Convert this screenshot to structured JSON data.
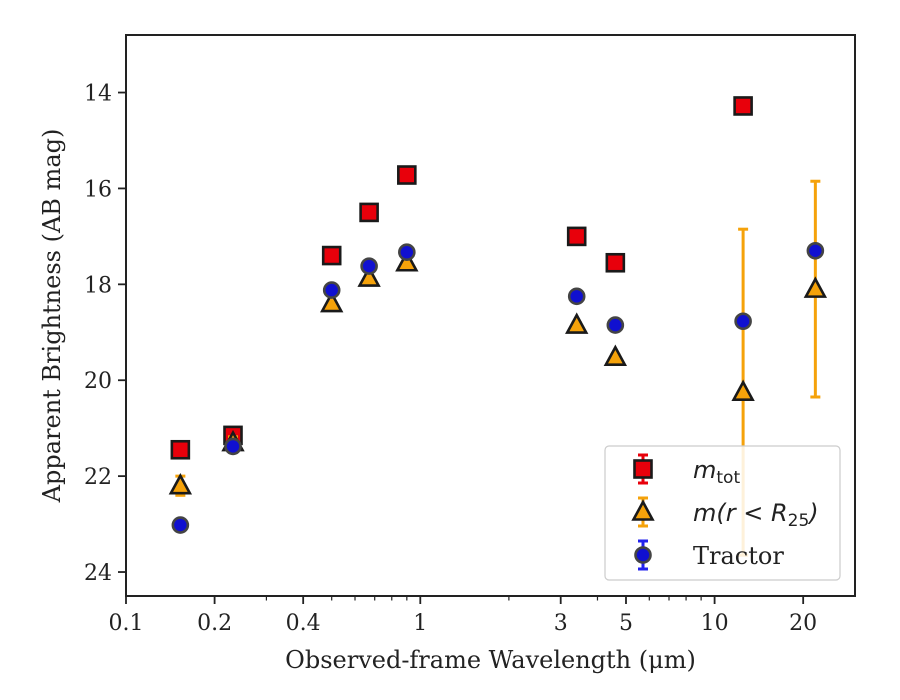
{
  "chart_data": {
    "type": "scatter",
    "xlabel": "Observed-frame Wavelength (μm)",
    "ylabel": "Apparent Brightness (AB mag)",
    "x_scale": "log",
    "xlim": [
      0.1,
      30
    ],
    "ylim": [
      24.5,
      12.8
    ],
    "y_inverted": true,
    "x_ticks": [
      {
        "value": 0.1,
        "label": "0.1"
      },
      {
        "value": 0.2,
        "label": "0.2"
      },
      {
        "value": 0.4,
        "label": "0.4"
      },
      {
        "value": 1,
        "label": "1"
      },
      {
        "value": 3,
        "label": "3"
      },
      {
        "value": 5,
        "label": "5"
      },
      {
        "value": 10,
        "label": "10"
      },
      {
        "value": 20,
        "label": "20"
      }
    ],
    "y_ticks": [
      {
        "value": 14,
        "label": "14"
      },
      {
        "value": 16,
        "label": "16"
      },
      {
        "value": 18,
        "label": "18"
      },
      {
        "value": 20,
        "label": "20"
      },
      {
        "value": 22,
        "label": "22"
      },
      {
        "value": 24,
        "label": "24"
      }
    ],
    "grid": false,
    "legend_position": "lower-right",
    "series": [
      {
        "key": "mtot",
        "legend_main": "m",
        "legend_sub": "tot",
        "marker": "square",
        "fill": "#e8000b",
        "errcolor": "#e8000b",
        "points": [
          {
            "x": 0.153,
            "y": 21.45,
            "err": 0.05
          },
          {
            "x": 0.231,
            "y": 21.15,
            "err": 0.1
          },
          {
            "x": 0.5,
            "y": 17.4,
            "err": 0.03
          },
          {
            "x": 0.67,
            "y": 16.5,
            "err": 0.03
          },
          {
            "x": 0.9,
            "y": 15.72,
            "err": 0.03
          },
          {
            "x": 3.4,
            "y": 17.0,
            "err": 0.05
          },
          {
            "x": 4.6,
            "y": 17.55,
            "err": 0.05
          },
          {
            "x": 12.5,
            "y": 14.28,
            "err": 0.05
          }
        ]
      },
      {
        "key": "mr25",
        "legend_main": "m(r < R",
        "legend_sub": "25",
        "legend_tail": ")",
        "marker": "triangle",
        "fill": "#f5a20a",
        "errcolor": "#f5a20a",
        "points": [
          {
            "x": 0.153,
            "y": 22.2,
            "err": 0.2
          },
          {
            "x": 0.231,
            "y": 21.3,
            "err": 0.12
          },
          {
            "x": 0.5,
            "y": 18.4,
            "err": 0.03
          },
          {
            "x": 0.67,
            "y": 17.87,
            "err": 0.03
          },
          {
            "x": 0.9,
            "y": 17.55,
            "err": 0.03
          },
          {
            "x": 3.4,
            "y": 18.85,
            "err": 0.05
          },
          {
            "x": 4.6,
            "y": 19.52,
            "err": 0.05
          },
          {
            "x": 12.5,
            "y": 20.25,
            "err": 3.4
          },
          {
            "x": 22,
            "y": 18.1,
            "err": 2.25
          }
        ]
      },
      {
        "key": "tractor",
        "legend_main": "Tractor",
        "marker": "circle",
        "fill": "#1010d0",
        "errcolor": "#2222ee",
        "points": [
          {
            "x": 0.153,
            "y": 23.02,
            "err": 0.08
          },
          {
            "x": 0.231,
            "y": 21.38,
            "err": 0.08
          },
          {
            "x": 0.5,
            "y": 18.12,
            "err": 0.08
          },
          {
            "x": 0.67,
            "y": 17.62,
            "err": 0.08
          },
          {
            "x": 0.9,
            "y": 17.33,
            "err": 0.08
          },
          {
            "x": 3.4,
            "y": 18.25,
            "err": 0.08
          },
          {
            "x": 4.6,
            "y": 18.85,
            "err": 0.08
          },
          {
            "x": 12.5,
            "y": 18.77,
            "err": 0.1
          },
          {
            "x": 22,
            "y": 17.3,
            "err": 0.1
          }
        ]
      }
    ]
  }
}
